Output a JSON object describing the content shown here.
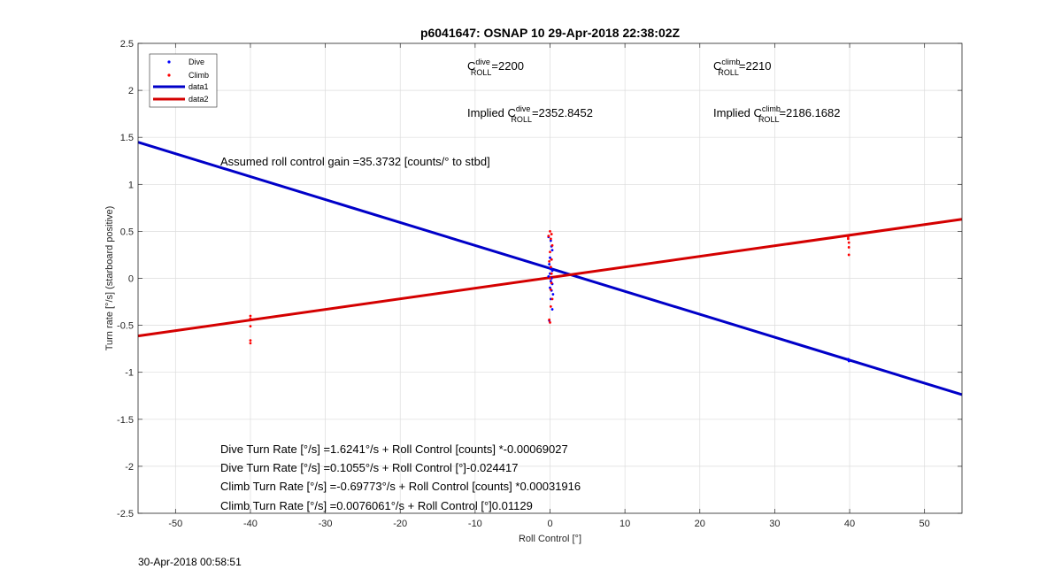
{
  "chart_data": {
    "type": "scatter",
    "title": "p6041647: OSNAP 10 29-Apr-2018 22:38:02Z",
    "xlabel": "Roll Control [°]",
    "ylabel": "Turn rate [°/s] (starboard positive)",
    "xlim": [
      -55,
      55
    ],
    "ylim": [
      -2.5,
      2.5
    ],
    "xticks": [
      -50,
      -40,
      -30,
      -20,
      -10,
      0,
      10,
      20,
      30,
      40,
      50
    ],
    "yticks": [
      -2.5,
      -2,
      -1.5,
      -1,
      -0.5,
      0,
      0.5,
      1,
      1.5,
      2,
      2.5
    ],
    "grid": true,
    "legend_position": "top-left",
    "series": [
      {
        "name": "Dive",
        "kind": "points",
        "color": "#0000ff",
        "points": [
          [
            -0.2,
            0.44
          ],
          [
            0.1,
            0.4
          ],
          [
            0.2,
            0.34
          ],
          [
            0.3,
            0.3
          ],
          [
            0.0,
            0.22
          ],
          [
            0.2,
            0.2
          ],
          [
            -0.1,
            0.15
          ],
          [
            0.1,
            0.1
          ],
          [
            0.3,
            0.08
          ],
          [
            0.0,
            0.05
          ],
          [
            -0.2,
            0.02
          ],
          [
            0.2,
            0.0
          ],
          [
            0.1,
            -0.03
          ],
          [
            0.3,
            -0.06
          ],
          [
            0.0,
            -0.1
          ],
          [
            0.2,
            -0.13
          ],
          [
            0.4,
            -0.17
          ],
          [
            0.1,
            -0.22
          ],
          [
            0.3,
            -0.33
          ],
          [
            -0.1,
            -0.45
          ],
          [
            39.8,
            -0.86
          ],
          [
            39.9,
            -0.88
          ]
        ]
      },
      {
        "name": "Climb",
        "kind": "points",
        "color": "#ff0000",
        "points": [
          [
            -40,
            -0.4
          ],
          [
            -40,
            -0.43
          ],
          [
            -40,
            -0.51
          ],
          [
            -40,
            -0.66
          ],
          [
            -40,
            -0.69
          ],
          [
            0.0,
            0.5
          ],
          [
            0.2,
            0.47
          ],
          [
            -0.2,
            0.45
          ],
          [
            0.1,
            0.42
          ],
          [
            0.3,
            0.35
          ],
          [
            0.0,
            0.28
          ],
          [
            0.2,
            0.2
          ],
          [
            -0.1,
            0.18
          ],
          [
            0.1,
            0.12
          ],
          [
            0.2,
            0.05
          ],
          [
            0.0,
            0.0
          ],
          [
            0.2,
            -0.05
          ],
          [
            0.1,
            -0.12
          ],
          [
            0.3,
            -0.22
          ],
          [
            0.1,
            -0.3
          ],
          [
            -0.1,
            -0.44
          ],
          [
            0.0,
            -0.47
          ],
          [
            39.8,
            0.44
          ],
          [
            39.8,
            0.42
          ],
          [
            39.9,
            0.38
          ],
          [
            39.9,
            0.33
          ],
          [
            39.9,
            0.25
          ]
        ]
      },
      {
        "name": "data1",
        "kind": "line",
        "color": "#0000c8",
        "x": [
          -55,
          55
        ],
        "y": [
          1.4483,
          -1.2373
        ]
      },
      {
        "name": "data2",
        "kind": "line",
        "color": "#d40000",
        "x": [
          -55,
          55
        ],
        "y": [
          -0.6132,
          0.6284
        ]
      }
    ],
    "annotations": {
      "c_dive": {
        "base": "C",
        "sup": "dive",
        "sub": "ROLL",
        "value": "=2200"
      },
      "c_climb": {
        "base": "C",
        "sup": "climb",
        "sub": "ROLL",
        "value": "=2210"
      },
      "implied_dive": {
        "prefix": "Implied ",
        "base": "C",
        "sup": "dive",
        "sub": "ROLL",
        "value": "=2352.8452"
      },
      "implied_climb": {
        "prefix": "Implied ",
        "base": "C",
        "sup": "climb",
        "sub": "ROLL",
        "value": "=2186.1682"
      },
      "gain": "Assumed roll control gain =35.3732 [counts/° to stbd]",
      "fits": [
        "Dive Turn Rate [°/s] =1.6241°/s + Roll Control [counts] *-0.00069027",
        "Dive Turn Rate [°/s] =0.1055°/s + Roll Control [°]-0.024417",
        "Climb Turn Rate [°/s] =-0.69773°/s + Roll Control [counts] *0.00031916",
        "Climb Turn Rate [°/s] =0.0076061°/s + Roll Control [°]0.01129"
      ]
    }
  },
  "timestamp": "30-Apr-2018 00:58:51"
}
